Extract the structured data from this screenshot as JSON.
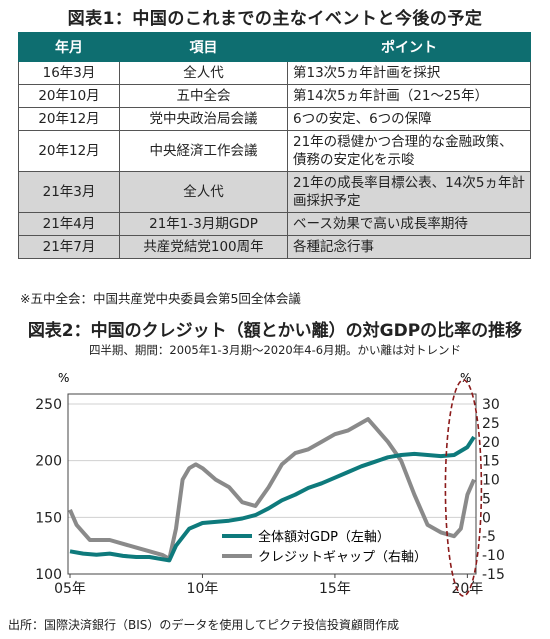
{
  "table1": {
    "title": "図表1：中国のこれまでの主なイベントと今後の予定",
    "headers": [
      "年月",
      "項目",
      "ポイント"
    ],
    "rows": [
      {
        "date": "16年3月",
        "item": "全人代",
        "point": "第13次5ヵ年計画を採択"
      },
      {
        "date": "20年10月",
        "item": "五中全会",
        "point": "第14次5ヵ年計画（21～25年）"
      },
      {
        "date": "20年12月",
        "item": "党中央政治局会議",
        "point": "6つの安定、6つの保障"
      },
      {
        "date": "20年12月",
        "item": "中央経済工作会議",
        "point": "21年の穏健かつ合理的な金融政策、債務の安定化を示唆"
      },
      {
        "date": "21年3月",
        "item": "全人代",
        "point": "21年の成長率目標公表、14次5ヵ年計画採択予定"
      },
      {
        "date": "21年4月",
        "item": "21年1-3月期GDP",
        "point": "ベース効果で高い成長率期待"
      },
      {
        "date": "21年7月",
        "item": "共産党結党100周年",
        "point": "各種記念行事"
      }
    ],
    "note": "※五中全会：中国共産党中央委員会第5回全体会議"
  },
  "chart2": {
    "title": "図表2：中国のクレジット（額とかい離）の対GDPの比率の推移",
    "subtitle": "四半期、期間：2005年1-3月期～2020年4-6月期。かい離は対トレンド",
    "left_unit": "%",
    "right_unit": "%",
    "left_ticks": [
      "250",
      "200",
      "150",
      "100"
    ],
    "right_ticks": [
      "30",
      "25",
      "20",
      "15",
      "10",
      "5",
      "0",
      "-5",
      "-10",
      "-15"
    ],
    "x_ticks": [
      "05年",
      "10年",
      "15年",
      "20年"
    ],
    "colors": {
      "total": "#0e7a7c",
      "gap": "#8a8a8a",
      "ellipse": "#8b1a1a"
    }
  },
  "chart_data": {
    "type": "line",
    "x_range": [
      2005.0,
      2020.25
    ],
    "ylim_left": [
      100,
      250
    ],
    "ylim_right": [
      -15,
      30
    ],
    "legend_position": "bottom-right",
    "series": [
      {
        "name": "全体額対GDP（左軸）",
        "axis": "left",
        "x": [
          2005.0,
          2005.5,
          2006.0,
          2006.5,
          2007.0,
          2007.5,
          2008.0,
          2008.5,
          2008.75,
          2009.0,
          2009.5,
          2010.0,
          2010.5,
          2011.0,
          2011.5,
          2012.0,
          2012.5,
          2013.0,
          2013.5,
          2014.0,
          2014.5,
          2015.0,
          2015.5,
          2016.0,
          2016.5,
          2017.0,
          2017.5,
          2018.0,
          2018.5,
          2019.0,
          2019.5,
          2020.0,
          2020.25
        ],
        "y": [
          120,
          118,
          117,
          118,
          116,
          115,
          115,
          113,
          112,
          125,
          140,
          145,
          146,
          147,
          149,
          152,
          158,
          165,
          170,
          176,
          180,
          185,
          190,
          195,
          199,
          203,
          205,
          206,
          205,
          204,
          205,
          212,
          221
        ]
      },
      {
        "name": "クレジットギャップ（右軸）",
        "axis": "right",
        "x": [
          2005.0,
          2005.25,
          2005.5,
          2005.75,
          2006.0,
          2006.5,
          2007.0,
          2007.5,
          2008.0,
          2008.5,
          2008.75,
          2009.0,
          2009.25,
          2009.5,
          2009.75,
          2010.0,
          2010.5,
          2011.0,
          2011.5,
          2012.0,
          2012.5,
          2013.0,
          2013.5,
          2014.0,
          2014.5,
          2015.0,
          2015.5,
          2016.0,
          2016.25,
          2016.5,
          2017.0,
          2017.5,
          2018.0,
          2018.5,
          2019.0,
          2019.5,
          2019.75,
          2020.0,
          2020.25
        ],
        "y": [
          2,
          -2,
          -4,
          -6,
          -6,
          -6,
          -7,
          -8,
          -9,
          -10,
          -11,
          -3,
          10,
          13,
          14,
          13,
          10,
          8,
          4,
          3,
          8,
          14,
          17,
          18,
          20,
          22,
          23,
          25,
          26,
          24,
          20,
          15,
          6,
          -2,
          -4,
          -5,
          -3,
          6,
          10
        ]
      }
    ]
  }
}
